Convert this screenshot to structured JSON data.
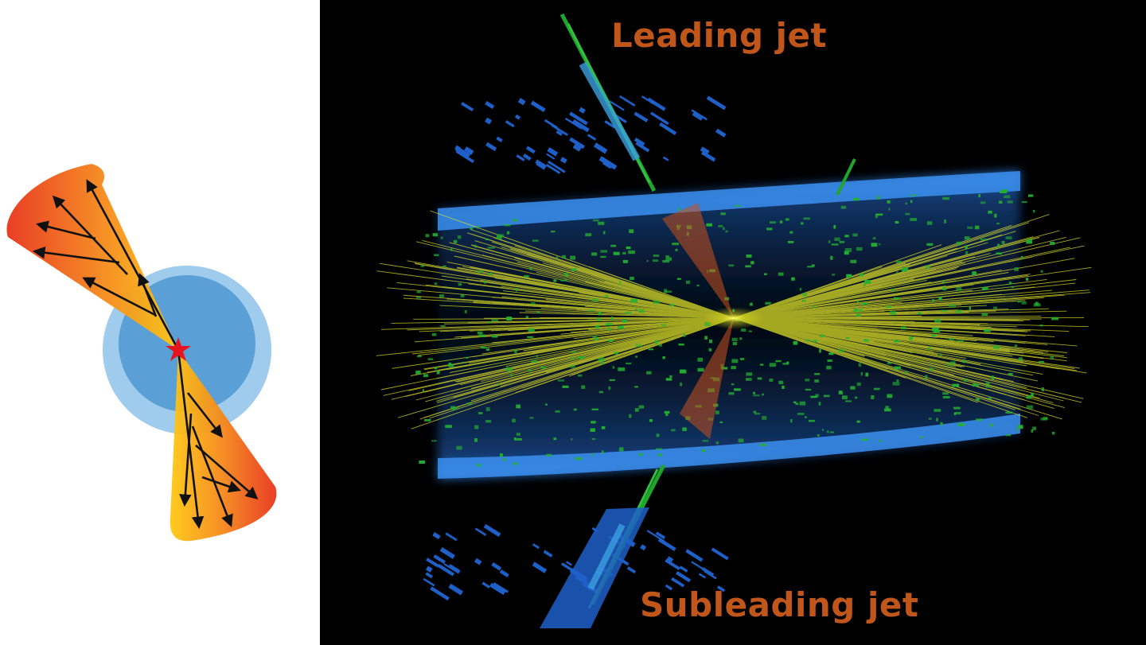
{
  "labels": {
    "leading_jet": "Leading jet",
    "subleading_jet": "Subleading jet"
  },
  "colors": {
    "label": "#c0561a",
    "cone_outer": "#e8341a",
    "cone_inner": "#ffc014",
    "nucleus": "#5a9fd6",
    "nucleus_halo": "#8ec2ea",
    "vertex_star": "#e5141f",
    "tracks": "#f2f020",
    "hits": "#1fa52c",
    "barrel": "#2f80e0",
    "calo_towers": "#1e5fc8",
    "background": "#000000"
  },
  "icons": {
    "vertex": "star-icon",
    "particle": "arrow-icon"
  }
}
